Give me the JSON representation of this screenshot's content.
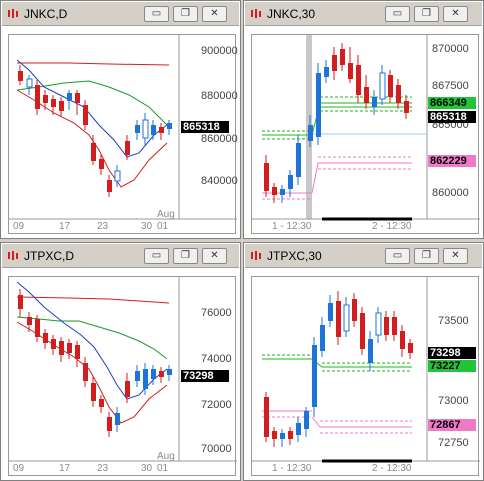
{
  "colors": {
    "bg": "#d4d0c8",
    "up_candle": "#1e73d8",
    "down_candle": "#d21e1e",
    "ma_red": "#d21e1e",
    "ma_blue": "#1e3cc8",
    "ma_green": "#1a9a2a",
    "green_line": "#22b422",
    "pink_line": "#f07ac8",
    "light_blue": "#9ad0f0",
    "current_box": "#000000",
    "green_box": "#22c43a",
    "pink_box": "#f07ac8"
  },
  "windows": [
    {
      "title": "JNKC,D",
      "y_labels": [
        "900000",
        "880000",
        "860000",
        "840000"
      ],
      "x_labels": [
        "09",
        "17",
        "23",
        "30",
        "01"
      ],
      "x_label_extra": "Aug",
      "price_current": "865318"
    },
    {
      "title": "JNKC,30",
      "y_labels": [
        "870000",
        "867500",
        "865000",
        "862500",
        "860000"
      ],
      "x_labels": [
        "1 - 12:30",
        "2 - 12:30"
      ],
      "price_current": "865318",
      "price_green": "866349",
      "price_pink": "862229"
    },
    {
      "title": "JTPXC,D",
      "y_labels": [
        "76000",
        "74000",
        "72000",
        "70000"
      ],
      "x_labels": [
        "09",
        "17",
        "23",
        "30",
        "01"
      ],
      "x_label_extra": "Aug",
      "price_current": "73298"
    },
    {
      "title": "JTPXC,30",
      "y_labels": [
        "73500",
        "73000",
        "72750"
      ],
      "x_labels": [
        "1 - 12:30",
        "2 - 12:30"
      ],
      "price_current": "73298",
      "price_green": "73227",
      "price_pink": "72867",
      "price_pink_alt": "73000"
    }
  ],
  "window_buttons": {
    "minimize": "▭",
    "restore": "❐",
    "close": "✕"
  }
}
